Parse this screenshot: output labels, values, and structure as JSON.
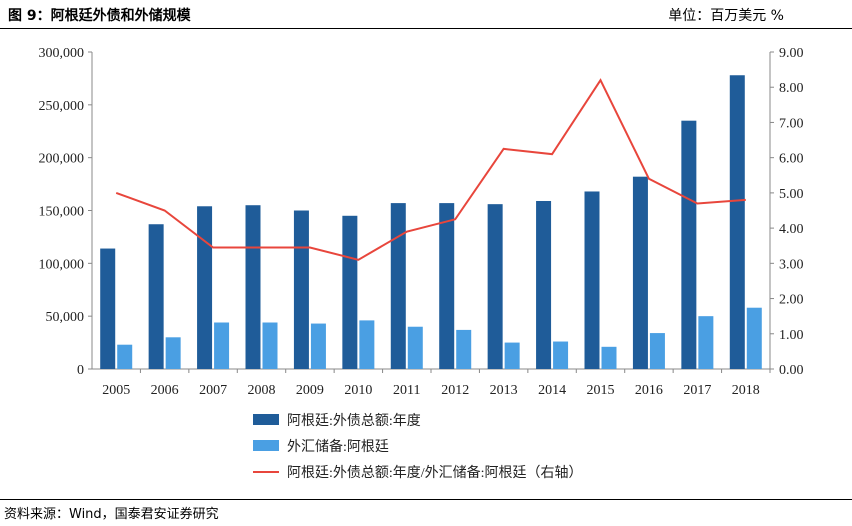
{
  "header": {
    "title": "图 9：阿根廷外债和外储规模",
    "unit": "单位：百万美元 %"
  },
  "footer": {
    "source": "资料来源：Wind，国泰君安证券研究"
  },
  "colors": {
    "bar_debt": "#1F5C99",
    "bar_reserve": "#4A9FE3",
    "line_ratio": "#E8463C",
    "axis": "#888888"
  },
  "chart_data": {
    "type": "bar",
    "categories": [
      "2005",
      "2006",
      "2007",
      "2008",
      "2009",
      "2010",
      "2011",
      "2012",
      "2013",
      "2014",
      "2015",
      "2016",
      "2017",
      "2018"
    ],
    "series": [
      {
        "name": "阿根廷:外债总额:年度",
        "type": "bar",
        "axis": "left",
        "values": [
          114000,
          137000,
          154000,
          155000,
          150000,
          145000,
          157000,
          157000,
          156000,
          159000,
          168000,
          182000,
          235000,
          278000
        ]
      },
      {
        "name": "外汇储备:阿根廷",
        "type": "bar",
        "axis": "left",
        "values": [
          23000,
          30000,
          44000,
          44000,
          43000,
          46000,
          40000,
          37000,
          25000,
          26000,
          21000,
          34000,
          50000,
          58000
        ]
      },
      {
        "name": "阿根廷:外债总额:年度/外汇储备:阿根廷（右轴）",
        "type": "line",
        "axis": "right",
        "values": [
          5.0,
          4.5,
          3.45,
          3.45,
          3.45,
          3.1,
          3.9,
          4.25,
          6.25,
          6.1,
          8.2,
          5.4,
          4.7,
          4.8
        ]
      }
    ],
    "left_axis": {
      "ylim": [
        0,
        300000
      ],
      "ticks": [
        "0",
        "50,000",
        "100,000",
        "150,000",
        "200,000",
        "250,000",
        "300,000"
      ]
    },
    "right_axis": {
      "ylim": [
        0,
        9
      ],
      "ticks": [
        "0.00",
        "1.00",
        "2.00",
        "3.00",
        "4.00",
        "5.00",
        "6.00",
        "7.00",
        "8.00",
        "9.00"
      ]
    },
    "grid": false,
    "legend_position": "bottom"
  }
}
